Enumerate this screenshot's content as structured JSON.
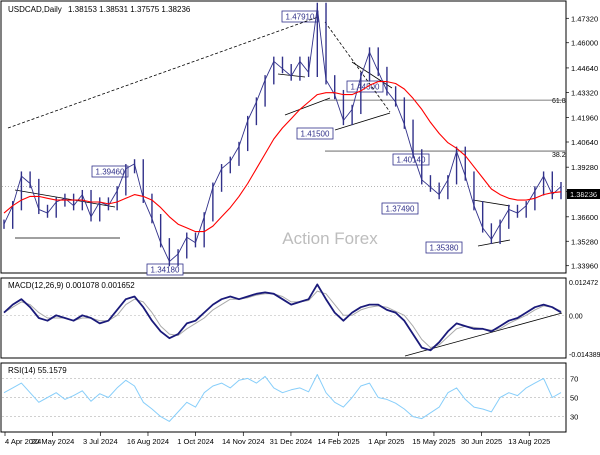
{
  "header": {
    "symbol_label": "USDCAD,Daily",
    "ohlc_text": "1.38153 1.38531 1.37575 1.38236"
  },
  "watermark": "Action Forex",
  "colors": {
    "price": "#31318a",
    "ma": "#ff0000",
    "macd": "#1a1a7a",
    "signal": "#aaaaaa",
    "rsi": "#87cefa",
    "trendline": "#000000",
    "level_box": "#ffffff",
    "level_border": "#31318a",
    "dotted": "#555555",
    "grid": "#c0c0c0"
  },
  "chart_data": [
    {
      "type": "line",
      "panel": "price",
      "title": "USDCAD,Daily",
      "ohlc_last": {
        "open": 1.38153,
        "high": 1.38531,
        "low": 1.37575,
        "close": 1.38236
      },
      "x_ticks": [
        "4 Apr 2024",
        "20 May 2024",
        "3 Jul 2024",
        "16 Aug 2024",
        "1 Oct 2024",
        "14 Nov 2024",
        "31 Dec 2024",
        "14 Feb 2025",
        "1 Apr 2025",
        "15 May 2025",
        "30 Jun 2025",
        "13 Aug 2025"
      ],
      "y_ticks": [
        1.3396,
        1.3528,
        1.366,
        1.3796,
        1.3928,
        1.4064,
        1.4196,
        1.4332,
        1.4464,
        1.46,
        1.4732
      ],
      "ylim": [
        1.3362,
        1.482
      ],
      "current_price_label": "1.38236",
      "fib_levels": [
        {
          "label": "61.8",
          "value": 1.429
        },
        {
          "label": "38.2",
          "value": 1.4015
        }
      ],
      "level_labels": [
        "1.47910",
        "1.44500",
        "1.41500",
        "1.39460",
        "1.40140",
        "1.37490",
        "1.34180",
        "1.35380"
      ],
      "series": [
        {
          "name": "price",
          "values": [
            1.362,
            1.372,
            1.388,
            1.384,
            1.37,
            1.368,
            1.374,
            1.376,
            1.372,
            1.378,
            1.366,
            1.374,
            1.372,
            1.38,
            1.392,
            1.3946,
            1.376,
            1.365,
            1.352,
            1.3418,
            1.346,
            1.355,
            1.352,
            1.366,
            1.382,
            1.392,
            1.396,
            1.404,
            1.418,
            1.428,
            1.44,
            1.45,
            1.446,
            1.442,
            1.45,
            1.444,
            1.4791,
            1.44,
            1.432,
            1.418,
            1.424,
            1.4415,
            1.455,
            1.4445,
            1.434,
            1.428,
            1.416,
            1.4,
            1.386,
            1.382,
            1.378,
            1.386,
            1.4014,
            1.388,
            1.372,
            1.36,
            1.3538,
            1.362,
            1.37,
            1.368,
            1.372,
            1.38,
            1.388,
            1.378,
            1.3823
          ]
        },
        {
          "name": "MA",
          "values": [
            1.368,
            1.372,
            1.375,
            1.377,
            1.377,
            1.376,
            1.375,
            1.375,
            1.375,
            1.375,
            1.374,
            1.374,
            1.373,
            1.374,
            1.376,
            1.378,
            1.377,
            1.375,
            1.371,
            1.366,
            1.362,
            1.36,
            1.358,
            1.358,
            1.361,
            1.366,
            1.371,
            1.377,
            1.384,
            1.392,
            1.4,
            1.408,
            1.414,
            1.419,
            1.424,
            1.428,
            1.432,
            1.433,
            1.433,
            1.432,
            1.432,
            1.434,
            1.437,
            1.439,
            1.439,
            1.438,
            1.435,
            1.43,
            1.424,
            1.417,
            1.411,
            1.406,
            1.403,
            1.399,
            1.393,
            1.387,
            1.381,
            1.378,
            1.376,
            1.375,
            1.375,
            1.376,
            1.378,
            1.379,
            1.3795
          ]
        }
      ]
    },
    {
      "type": "line",
      "panel": "macd",
      "title": "MACD(12,26,9) 0.001078 0.001652",
      "y_ticks": [
        0.012472,
        0.0,
        -0.014389
      ],
      "ylim": [
        -0.0155,
        0.0135
      ],
      "series": [
        {
          "name": "MACD",
          "values": [
            0.001,
            0.004,
            0.006,
            0.003,
            -0.001,
            -0.002,
            0.0,
            -0.001,
            -0.002,
            0.0,
            -0.001,
            -0.003,
            -0.002,
            0.002,
            0.006,
            0.007,
            0.003,
            -0.002,
            -0.006,
            -0.0085,
            -0.007,
            -0.003,
            -0.002,
            0.001,
            0.004,
            0.006,
            0.007,
            0.006,
            0.007,
            0.008,
            0.0085,
            0.008,
            0.006,
            0.004,
            0.005,
            0.006,
            0.0115,
            0.006,
            0.001,
            -0.002,
            0.001,
            0.003,
            0.004,
            0.004,
            0.002,
            0.001,
            -0.002,
            -0.007,
            -0.012,
            -0.013,
            -0.01,
            -0.006,
            -0.003,
            -0.004,
            -0.005,
            -0.005,
            -0.006,
            -0.004,
            -0.002,
            -0.001,
            0.001,
            0.003,
            0.004,
            0.003,
            0.001078
          ]
        },
        {
          "name": "Signal",
          "values": [
            0.001,
            0.003,
            0.005,
            0.004,
            0.001,
            -0.001,
            -0.001,
            -0.001,
            -0.002,
            -0.001,
            -0.001,
            -0.002,
            -0.002,
            0.0,
            0.004,
            0.006,
            0.005,
            0.001,
            -0.004,
            -0.007,
            -0.0075,
            -0.005,
            -0.003,
            -0.001,
            0.002,
            0.004,
            0.006,
            0.006,
            0.0065,
            0.0075,
            0.008,
            0.008,
            0.007,
            0.005,
            0.005,
            0.0055,
            0.009,
            0.008,
            0.004,
            0.0,
            0.0,
            0.002,
            0.003,
            0.0035,
            0.003,
            0.0015,
            0.0,
            -0.004,
            -0.009,
            -0.012,
            -0.011,
            -0.008,
            -0.005,
            -0.004,
            -0.0045,
            -0.005,
            -0.0055,
            -0.005,
            -0.003,
            -0.0015,
            0.0,
            0.002,
            0.0035,
            0.003,
            0.001652
          ]
        }
      ]
    },
    {
      "type": "line",
      "panel": "rsi",
      "title": "RSI(14) 55.1579",
      "y_ticks": [
        70,
        50,
        30
      ],
      "ylim": [
        15,
        85
      ],
      "series": [
        {
          "name": "RSI",
          "values": [
            55,
            60,
            65,
            55,
            45,
            50,
            55,
            48,
            52,
            57,
            46,
            54,
            50,
            60,
            68,
            62,
            45,
            38,
            30,
            25,
            35,
            45,
            40,
            55,
            62,
            65,
            60,
            68,
            70,
            65,
            72,
            60,
            55,
            58,
            60,
            56,
            74,
            55,
            45,
            40,
            50,
            62,
            65,
            50,
            48,
            44,
            38,
            30,
            28,
            34,
            40,
            55,
            60,
            48,
            40,
            38,
            35,
            50,
            55,
            52,
            60,
            65,
            70,
            50,
            55.16
          ]
        }
      ]
    }
  ]
}
